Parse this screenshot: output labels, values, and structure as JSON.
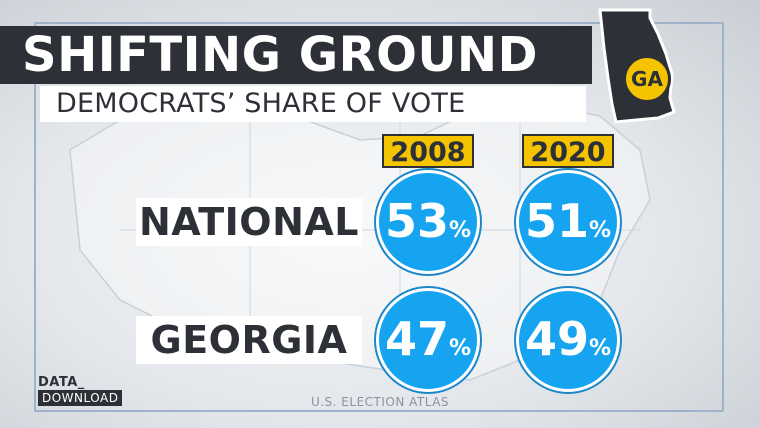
{
  "title": "SHIFTING GROUND",
  "subtitle": "DEMOCRATS’ SHARE OF VOTE",
  "state_badge": "GA",
  "brand": {
    "top": "DATA_",
    "bottom": "DOWNLOAD"
  },
  "source": "U.S. ELECTION ATLAS",
  "colors": {
    "bubble": "#16a3f0",
    "year_badge": "#f5c400",
    "dark": "#2e3038"
  },
  "chart_data": {
    "type": "table",
    "title": "SHIFTING GROUND",
    "subtitle": "DEMOCRATS’ SHARE OF VOTE",
    "columns": [
      "2008",
      "2020"
    ],
    "rows": [
      {
        "label": "NATIONAL",
        "values": [
          53,
          51
        ],
        "unit": "%"
      },
      {
        "label": "GEORGIA",
        "values": [
          47,
          49
        ],
        "unit": "%"
      }
    ]
  }
}
